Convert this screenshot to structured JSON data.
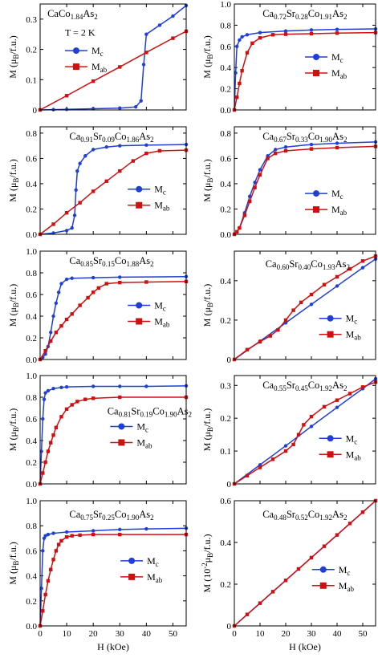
{
  "chart_data": [
    {
      "type": "line",
      "title": "CaCo1.84As2",
      "annotation": "T = 2 K",
      "ylabel": "M (μB/f.u.)",
      "xlim": [
        0,
        55
      ],
      "xticks": [
        0,
        10,
        20,
        30,
        40,
        50
      ],
      "ylim": [
        0,
        0.35
      ],
      "yticks": [
        0,
        0.1,
        0.2,
        0.3
      ],
      "series": [
        {
          "name": "Mc",
          "color": "#1f3fd8",
          "marker": "circle",
          "x": [
            0,
            5,
            10,
            20,
            30,
            36,
            38,
            39,
            40,
            45,
            50,
            55
          ],
          "values": [
            0,
            0.001,
            0.002,
            0.004,
            0.006,
            0.01,
            0.03,
            0.15,
            0.25,
            0.28,
            0.31,
            0.345
          ]
        },
        {
          "name": "Mab",
          "color": "#d01010",
          "marker": "square",
          "x": [
            0,
            10,
            20,
            30,
            40,
            50,
            55
          ],
          "values": [
            0,
            0.047,
            0.095,
            0.142,
            0.19,
            0.237,
            0.26
          ]
        }
      ]
    },
    {
      "type": "line",
      "title": "Ca0.72Sr0.28Co1.91As2",
      "ylabel": "M (μB/f.u.)",
      "xlim": [
        0,
        55
      ],
      "xticks": [
        0,
        10,
        20,
        30,
        40,
        50
      ],
      "ylim": [
        0,
        1
      ],
      "yticks": [
        {
          "value": 0,
          "label": "0.0"
        },
        0.2,
        0.4,
        0.6,
        0.8,
        {
          "value": 1,
          "label": "1.0"
        }
      ],
      "series": [
        {
          "name": "Mc",
          "color": "#1f3fd8",
          "marker": "circle",
          "x": [
            0,
            0.5,
            1,
            2,
            3,
            5,
            10,
            20,
            30,
            40,
            55
          ],
          "values": [
            0,
            0.35,
            0.6,
            0.66,
            0.69,
            0.71,
            0.73,
            0.745,
            0.755,
            0.76,
            0.765
          ]
        },
        {
          "name": "Mab",
          "color": "#d01010",
          "marker": "square",
          "x": [
            0,
            1,
            2,
            3,
            5,
            7,
            10,
            15,
            20,
            30,
            40,
            55
          ],
          "values": [
            0,
            0.12,
            0.25,
            0.37,
            0.54,
            0.63,
            0.68,
            0.71,
            0.715,
            0.72,
            0.725,
            0.73
          ]
        }
      ]
    },
    {
      "type": "line",
      "title": "Ca0.91Sr0.09Co1.86As2",
      "ylabel": "M (μB/f.u.)",
      "xlim": [
        0,
        55
      ],
      "xticks": [
        0,
        10,
        20,
        30,
        40,
        50
      ],
      "ylim": [
        0,
        0.85
      ],
      "yticks": [
        {
          "value": 0,
          "label": "0.0"
        },
        0.2,
        0.4,
        0.6,
        0.8
      ],
      "series": [
        {
          "name": "Mc",
          "color": "#1f3fd8",
          "marker": "circle",
          "x": [
            0,
            5,
            10,
            12,
            13,
            13.5,
            14,
            15,
            17,
            20,
            25,
            30,
            40,
            55
          ],
          "values": [
            0,
            0.01,
            0.03,
            0.05,
            0.15,
            0.35,
            0.5,
            0.56,
            0.62,
            0.67,
            0.69,
            0.7,
            0.705,
            0.71
          ]
        },
        {
          "name": "Mab",
          "color": "#d01010",
          "marker": "square",
          "x": [
            0,
            5,
            10,
            15,
            20,
            25,
            30,
            35,
            40,
            45,
            55
          ],
          "values": [
            0,
            0.08,
            0.17,
            0.25,
            0.34,
            0.42,
            0.5,
            0.58,
            0.64,
            0.66,
            0.665
          ]
        }
      ]
    },
    {
      "type": "line",
      "title": "Ca0.67Sr0.33Co1.90As2",
      "ylabel": "M (μB/f.u.)",
      "xlim": [
        0,
        55
      ],
      "xticks": [
        0,
        10,
        20,
        30,
        40,
        50
      ],
      "ylim": [
        0,
        0.85
      ],
      "yticks": [
        {
          "value": 0,
          "label": "0.0"
        },
        0.2,
        0.4,
        0.6,
        0.8
      ],
      "series": [
        {
          "name": "Mc",
          "color": "#1f3fd8",
          "marker": "circle",
          "x": [
            0,
            1,
            2,
            4,
            6,
            8,
            10,
            13,
            16,
            20,
            30,
            40,
            55
          ],
          "values": [
            0,
            0.02,
            0.05,
            0.17,
            0.3,
            0.41,
            0.51,
            0.62,
            0.67,
            0.69,
            0.71,
            0.72,
            0.73
          ]
        },
        {
          "name": "Mab",
          "color": "#d01010",
          "marker": "square",
          "x": [
            0,
            1,
            2,
            4,
            6,
            8,
            10,
            13,
            16,
            20,
            30,
            40,
            55
          ],
          "values": [
            0,
            0.02,
            0.05,
            0.15,
            0.26,
            0.37,
            0.47,
            0.6,
            0.64,
            0.66,
            0.675,
            0.685,
            0.695
          ]
        }
      ]
    },
    {
      "type": "line",
      "title": "Ca0.85Sr0.15Co1.88As2",
      "ylabel": "M (μB/f.u.)",
      "xlim": [
        0,
        55
      ],
      "xticks": [
        0,
        10,
        20,
        30,
        40,
        50
      ],
      "ylim": [
        0,
        1
      ],
      "yticks": [
        {
          "value": 0,
          "label": "0.0"
        },
        0.2,
        0.4,
        0.6,
        0.8,
        {
          "value": 1,
          "label": "1.0"
        }
      ],
      "series": [
        {
          "name": "Mc",
          "color": "#1f3fd8",
          "marker": "circle",
          "x": [
            0,
            1,
            2,
            3,
            4,
            5,
            6,
            7,
            8,
            10,
            12,
            20,
            30,
            55
          ],
          "values": [
            0,
            0.02,
            0.05,
            0.12,
            0.25,
            0.4,
            0.52,
            0.62,
            0.7,
            0.74,
            0.75,
            0.755,
            0.76,
            0.765
          ]
        },
        {
          "name": "Mab",
          "color": "#d01010",
          "marker": "square",
          "x": [
            0,
            2,
            4,
            6,
            8,
            10,
            12,
            15,
            18,
            20,
            22,
            25,
            30,
            40,
            55
          ],
          "values": [
            0,
            0.08,
            0.17,
            0.25,
            0.31,
            0.37,
            0.42,
            0.5,
            0.57,
            0.62,
            0.66,
            0.7,
            0.71,
            0.715,
            0.72
          ]
        }
      ]
    },
    {
      "type": "line",
      "title": "Ca0.60Sr0.40Co1.93As2",
      "ylabel": "M (μB/f.u.)",
      "xlim": [
        0,
        55
      ],
      "xticks": [
        0,
        10,
        20,
        30,
        40,
        50
      ],
      "ylim": [
        0,
        0.55
      ],
      "yticks": [
        0,
        0.2,
        0.4
      ],
      "series": [
        {
          "name": "Mc",
          "color": "#1f3fd8",
          "marker": "circle",
          "x": [
            0,
            10,
            20,
            30,
            40,
            50,
            55
          ],
          "values": [
            0,
            0.093,
            0.186,
            0.28,
            0.373,
            0.466,
            0.51
          ]
        },
        {
          "name": "Mab",
          "color": "#d01010",
          "marker": "square",
          "x": [
            0,
            5,
            10,
            14,
            17,
            20,
            23,
            26,
            30,
            35,
            40,
            45,
            50,
            55
          ],
          "values": [
            0,
            0.05,
            0.09,
            0.12,
            0.15,
            0.2,
            0.25,
            0.29,
            0.33,
            0.38,
            0.42,
            0.46,
            0.5,
            0.525
          ]
        }
      ]
    },
    {
      "type": "line",
      "title": "Ca0.81Sr0.19Co1.90As2",
      "ylabel": "M (μB/f.u.)",
      "xlim": [
        0,
        55
      ],
      "xticks": [
        0,
        10,
        20,
        30,
        40,
        50
      ],
      "ylim": [
        0,
        1
      ],
      "yticks": [
        {
          "value": 0,
          "label": "0.0"
        },
        0.2,
        0.4,
        0.6,
        0.8,
        {
          "value": 1,
          "label": "1.0"
        }
      ],
      "series": [
        {
          "name": "Mc",
          "color": "#1f3fd8",
          "marker": "circle",
          "x": [
            0,
            0.5,
            1,
            1.5,
            2,
            3,
            5,
            8,
            10,
            20,
            30,
            40,
            55
          ],
          "values": [
            0,
            0.3,
            0.6,
            0.78,
            0.84,
            0.86,
            0.88,
            0.89,
            0.895,
            0.9,
            0.9,
            0.9,
            0.905
          ]
        },
        {
          "name": "Mab",
          "color": "#d01010",
          "marker": "square",
          "x": [
            0,
            1,
            2,
            3,
            4,
            5,
            6,
            8,
            10,
            12,
            14,
            17,
            20,
            30,
            55
          ],
          "values": [
            0,
            0.1,
            0.2,
            0.3,
            0.38,
            0.45,
            0.52,
            0.62,
            0.69,
            0.73,
            0.76,
            0.78,
            0.79,
            0.8,
            0.8
          ]
        }
      ]
    },
    {
      "type": "line",
      "title": "Ca0.55Sr0.45Co1.92As2",
      "ylabel": "M (μB/f.u.)",
      "xlim": [
        0,
        55
      ],
      "xticks": [
        0,
        10,
        20,
        30,
        40,
        50
      ],
      "ylim": [
        0,
        0.33
      ],
      "yticks": [
        0,
        0.1,
        0.2,
        0.3
      ],
      "series": [
        {
          "name": "Mc",
          "color": "#1f3fd8",
          "marker": "circle",
          "x": [
            0,
            10,
            20,
            30,
            40,
            50,
            55
          ],
          "values": [
            0,
            0.058,
            0.116,
            0.175,
            0.233,
            0.29,
            0.32
          ]
        },
        {
          "name": "Mab",
          "color": "#d01010",
          "marker": "square",
          "x": [
            0,
            5,
            10,
            15,
            20,
            23,
            25,
            27,
            30,
            35,
            40,
            45,
            50,
            55
          ],
          "values": [
            0,
            0.025,
            0.05,
            0.075,
            0.1,
            0.12,
            0.15,
            0.18,
            0.205,
            0.235,
            0.255,
            0.275,
            0.295,
            0.31
          ]
        }
      ]
    },
    {
      "type": "line",
      "title": "Ca0.75Sr0.25Co1.90As2",
      "ylabel": "M (μB/f.u.)",
      "xlabel": "H (kOe)",
      "xlim": [
        0,
        55
      ],
      "xticks": [
        0,
        10,
        20,
        30,
        40,
        50
      ],
      "ylim": [
        0,
        1
      ],
      "yticks": [
        {
          "value": 0,
          "label": "0.0"
        },
        0.2,
        0.4,
        0.6,
        0.8,
        {
          "value": 1,
          "label": "1.0"
        }
      ],
      "series": [
        {
          "name": "Mc",
          "color": "#1f3fd8",
          "marker": "circle",
          "x": [
            0,
            0.5,
            1,
            1.5,
            2,
            3,
            5,
            10,
            20,
            30,
            40,
            55
          ],
          "values": [
            0,
            0.3,
            0.6,
            0.7,
            0.72,
            0.73,
            0.74,
            0.75,
            0.76,
            0.77,
            0.775,
            0.78
          ]
        },
        {
          "name": "Mab",
          "color": "#d01010",
          "marker": "square",
          "x": [
            0,
            1,
            2,
            3,
            4,
            5,
            6,
            7,
            8,
            10,
            12,
            15,
            20,
            30,
            55
          ],
          "values": [
            0,
            0.12,
            0.25,
            0.36,
            0.45,
            0.53,
            0.6,
            0.65,
            0.68,
            0.71,
            0.72,
            0.725,
            0.73,
            0.73,
            0.73
          ]
        }
      ]
    },
    {
      "type": "line",
      "title": "Ca0.48Sr0.52Co1.92As2",
      "ylabel": "M (10-2μB/f.u.)",
      "xlabel": "H (kOe)",
      "xlim": [
        0,
        55
      ],
      "xticks": [
        0,
        10,
        20,
        30,
        40,
        50
      ],
      "ylim": [
        0,
        0.6
      ],
      "yticks": [
        0,
        0.2,
        0.4,
        0.6
      ],
      "series": [
        {
          "name": "Mc",
          "color": "#1f3fd8",
          "marker": "circle",
          "x": [
            0,
            10,
            20,
            30,
            40,
            50,
            55
          ],
          "values": [
            0,
            0.109,
            0.218,
            0.327,
            0.436,
            0.545,
            0.6
          ]
        },
        {
          "name": "Mab",
          "color": "#d01010",
          "marker": "square",
          "x": [
            0,
            5,
            10,
            15,
            20,
            25,
            30,
            35,
            40,
            45,
            50,
            55
          ],
          "values": [
            0,
            0.055,
            0.109,
            0.164,
            0.218,
            0.273,
            0.327,
            0.382,
            0.436,
            0.491,
            0.545,
            0.6
          ]
        }
      ]
    }
  ]
}
